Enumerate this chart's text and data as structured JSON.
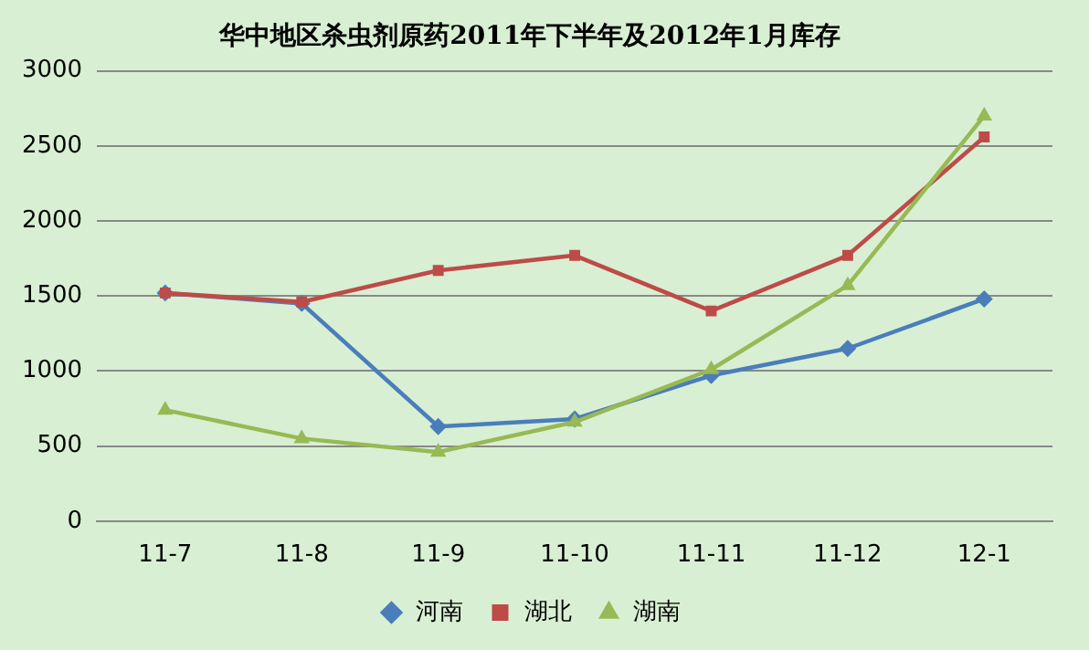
{
  "chart_data": {
    "type": "line",
    "title": "华中地区杀虫剂原药2011年下半年及2012年1月库存",
    "categories": [
      "11-7",
      "11-8",
      "11-9",
      "11-10",
      "11-11",
      "11-12",
      "12-1"
    ],
    "series": [
      {
        "name": "河南",
        "color": "#4a7ebb",
        "marker": "diamond",
        "values": [
          1520,
          1450,
          630,
          680,
          970,
          1150,
          1480
        ]
      },
      {
        "name": "湖北",
        "color": "#be4b48",
        "marker": "square",
        "values": [
          1520,
          1460,
          1670,
          1770,
          1400,
          1770,
          2560
        ]
      },
      {
        "name": "湖南",
        "color": "#98b954",
        "marker": "triangle",
        "values": [
          740,
          550,
          460,
          660,
          1010,
          1570,
          2700
        ]
      }
    ],
    "ylim": [
      0,
      3000
    ],
    "yticks": [
      0,
      500,
      1000,
      1500,
      2000,
      2500,
      3000
    ],
    "grid": "y",
    "legend": "bottom",
    "line_style": "solid"
  }
}
